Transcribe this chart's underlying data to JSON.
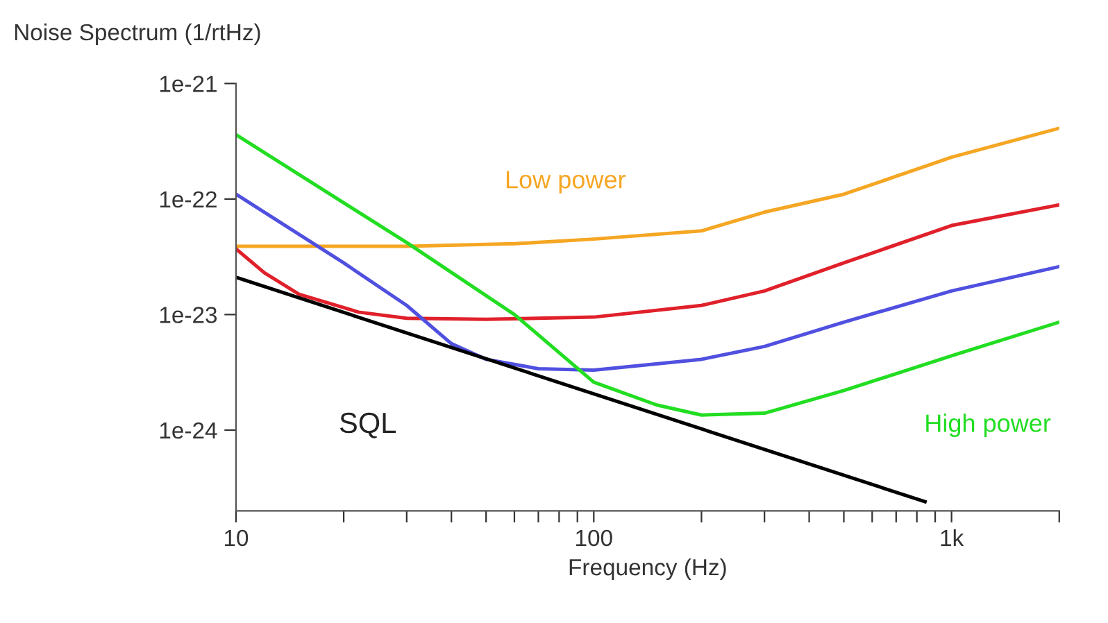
{
  "chart_data": {
    "type": "line",
    "xlabel": "Frequency (Hz)",
    "ylabel": "Noise Spectrum (1/rtHz)",
    "log": "xy",
    "grid": false,
    "legend": false,
    "marker": "none",
    "line_style": "solid",
    "xlim": [
      10,
      2000
    ],
    "ylim": [
      2e-25,
      1e-21
    ],
    "xticks": [
      10,
      {
        "value": 20,
        "label": null
      },
      {
        "value": 30,
        "label": null
      },
      {
        "value": 40,
        "label": null
      },
      {
        "value": 50,
        "label": null
      },
      {
        "value": 60,
        "label": null
      },
      {
        "value": 70,
        "label": null
      },
      {
        "value": 80,
        "label": null
      },
      {
        "value": 90,
        "label": null
      },
      100,
      {
        "value": 200,
        "label": null
      },
      {
        "value": 300,
        "label": null
      },
      {
        "value": 400,
        "label": null
      },
      {
        "value": 500,
        "label": null
      },
      {
        "value": 600,
        "label": null
      },
      {
        "value": 700,
        "label": null
      },
      {
        "value": 800,
        "label": null
      },
      {
        "value": 900,
        "label": null
      },
      {
        "value": 1000,
        "label": "1k"
      },
      {
        "value": 2000,
        "label": null
      }
    ],
    "yticks": [
      {
        "value": 1e-21,
        "label": "1e-21"
      },
      {
        "value": 1e-22,
        "label": "1e-22"
      },
      {
        "value": 1e-23,
        "label": "1e-23"
      },
      {
        "value": 1e-24,
        "label": "1e-24"
      }
    ],
    "series": [
      {
        "name": "Low power",
        "color": "#f5a623",
        "x": [
          10,
          30,
          60,
          100,
          200,
          300,
          500,
          1000,
          2000
        ],
        "values": [
          3.9e-23,
          3.9e-23,
          4.1e-23,
          4.5e-23,
          5.3e-23,
          7.7e-23,
          1.1e-22,
          2.3e-22,
          4.1e-22
        ]
      },
      {
        "color": "#e0202a",
        "x": [
          10,
          12,
          15,
          22,
          30,
          50,
          100,
          200,
          300,
          500,
          1000,
          2000
        ],
        "values": [
          3.7e-23,
          2.3e-23,
          1.5e-23,
          1.05e-23,
          9.3e-24,
          9.1e-24,
          9.5e-24,
          1.2e-23,
          1.6e-23,
          2.8e-23,
          5.9e-23,
          8.9e-23
        ]
      },
      {
        "color": "#5050e0",
        "x": [
          10,
          20,
          30,
          40,
          50,
          70,
          100,
          200,
          300,
          500,
          1000,
          2000
        ],
        "values": [
          1.1e-22,
          2.8e-23,
          1.2e-23,
          5.6e-24,
          4.1e-24,
          3.4e-24,
          3.3e-24,
          4.1e-24,
          5.3e-24,
          8.6e-24,
          1.6e-23,
          2.6e-23
        ]
      },
      {
        "name": "High power",
        "color": "#22dd22",
        "x": [
          10,
          30,
          60,
          100,
          150,
          200,
          300,
          500,
          1000,
          2000
        ],
        "values": [
          3.6e-22,
          4.2e-23,
          1e-23,
          2.6e-24,
          1.65e-24,
          1.35e-24,
          1.4e-24,
          2.2e-24,
          4.4e-24,
          8.6e-24
        ]
      },
      {
        "name": "SQL",
        "color": "#000000",
        "x": [
          10,
          843
        ],
        "values": [
          2.1e-23,
          2.4e-25
        ]
      }
    ]
  }
}
